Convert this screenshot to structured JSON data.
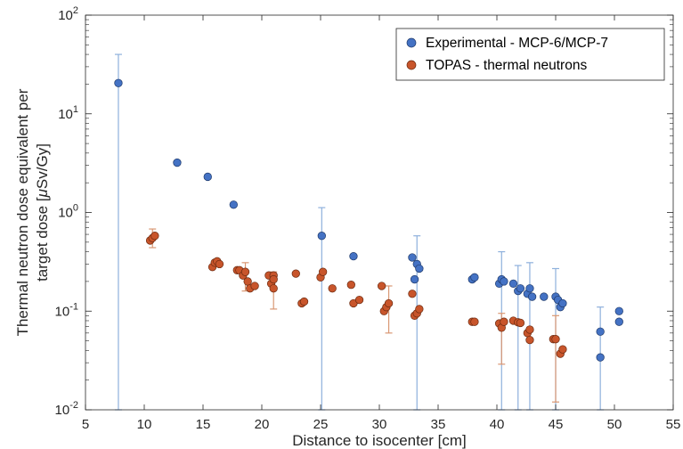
{
  "chart_data": {
    "type": "scatter",
    "title": "",
    "xlabel": "Distance to isocenter [cm]",
    "ylabel_line1": "Thermal neutron dose equivalent per",
    "ylabel_line2_prefix": "target dose [",
    "ylabel_line2_mu": "μ",
    "ylabel_line2_suffix": "Sv/Gy]",
    "xlim": [
      5,
      55
    ],
    "ylim": [
      0.01,
      100
    ],
    "yscale": "log",
    "grid": false,
    "legend_position": "top-right",
    "x_ticks": [
      "5",
      "10",
      "15",
      "20",
      "25",
      "30",
      "35",
      "40",
      "45",
      "50",
      "55"
    ],
    "x_tick_values": [
      5,
      10,
      15,
      20,
      25,
      30,
      35,
      40,
      45,
      50,
      55
    ],
    "y_tick_values": [
      0.01,
      0.1,
      1,
      10,
      100
    ],
    "y_ticks": [
      {
        "base": "10",
        "exp": "-2"
      },
      {
        "base": "10",
        "exp": "-1"
      },
      {
        "base": "10",
        "exp": "0"
      },
      {
        "base": "10",
        "exp": "1"
      },
      {
        "base": "10",
        "exp": "2"
      }
    ],
    "series": [
      {
        "name": "Experimental - MCP-6/MCP-7",
        "color": "#4472C4",
        "edge_color": "#1F3A6B",
        "error_color": "#8EB0DC",
        "points": [
          {
            "x": 7.8,
            "y": 20.5,
            "err": [
              0.01,
              40
            ]
          },
          {
            "x": 12.8,
            "y": 3.2
          },
          {
            "x": 15.4,
            "y": 2.3
          },
          {
            "x": 17.6,
            "y": 1.2
          },
          {
            "x": 25.1,
            "y": 0.58,
            "err": [
              0.01,
              1.12
            ]
          },
          {
            "x": 27.8,
            "y": 0.36
          },
          {
            "x": 32.8,
            "y": 0.35
          },
          {
            "x": 33.0,
            "y": 0.21
          },
          {
            "x": 33.2,
            "y": 0.3,
            "err": [
              0.01,
              0.58
            ]
          },
          {
            "x": 33.4,
            "y": 0.27
          },
          {
            "x": 37.9,
            "y": 0.21
          },
          {
            "x": 38.1,
            "y": 0.22
          },
          {
            "x": 40.2,
            "y": 0.19
          },
          {
            "x": 40.4,
            "y": 0.21,
            "err": [
              0.01,
              0.4
            ]
          },
          {
            "x": 40.6,
            "y": 0.2
          },
          {
            "x": 41.4,
            "y": 0.19
          },
          {
            "x": 41.8,
            "y": 0.16,
            "err": [
              0.01,
              0.29
            ]
          },
          {
            "x": 42.0,
            "y": 0.17
          },
          {
            "x": 42.6,
            "y": 0.15
          },
          {
            "x": 42.8,
            "y": 0.17,
            "err": [
              0.01,
              0.31
            ]
          },
          {
            "x": 43.0,
            "y": 0.14
          },
          {
            "x": 44.0,
            "y": 0.14
          },
          {
            "x": 45.0,
            "y": 0.14,
            "err": [
              0.01,
              0.27
            ]
          },
          {
            "x": 45.2,
            "y": 0.13
          },
          {
            "x": 45.4,
            "y": 0.11
          },
          {
            "x": 45.6,
            "y": 0.12
          },
          {
            "x": 48.8,
            "y": 0.062,
            "err": [
              0.01,
              0.11
            ]
          },
          {
            "x": 48.8,
            "y": 0.034
          },
          {
            "x": 50.4,
            "y": 0.1
          },
          {
            "x": 50.4,
            "y": 0.078
          }
        ]
      },
      {
        "name": "TOPAS - thermal neutrons",
        "color": "#C8552B",
        "edge_color": "#6B2A10",
        "error_color": "#D99773",
        "points": [
          {
            "x": 10.5,
            "y": 0.52
          },
          {
            "x": 10.7,
            "y": 0.55,
            "err": [
              0.44,
              0.68
            ]
          },
          {
            "x": 10.9,
            "y": 0.58
          },
          {
            "x": 15.8,
            "y": 0.28
          },
          {
            "x": 16.0,
            "y": 0.31
          },
          {
            "x": 16.2,
            "y": 0.32
          },
          {
            "x": 16.4,
            "y": 0.3
          },
          {
            "x": 17.9,
            "y": 0.26
          },
          {
            "x": 18.1,
            "y": 0.26
          },
          {
            "x": 18.4,
            "y": 0.23
          },
          {
            "x": 18.6,
            "y": 0.25,
            "err": [
              0.16,
              0.31
            ]
          },
          {
            "x": 18.8,
            "y": 0.2
          },
          {
            "x": 19.0,
            "y": 0.17
          },
          {
            "x": 19.4,
            "y": 0.18
          },
          {
            "x": 20.6,
            "y": 0.23
          },
          {
            "x": 20.8,
            "y": 0.19
          },
          {
            "x": 21.0,
            "y": 0.17,
            "err": [
              0.105,
              0.25
            ]
          },
          {
            "x": 21.0,
            "y": 0.23
          },
          {
            "x": 21.0,
            "y": 0.21
          },
          {
            "x": 22.9,
            "y": 0.24
          },
          {
            "x": 23.4,
            "y": 0.12
          },
          {
            "x": 23.6,
            "y": 0.125
          },
          {
            "x": 25.0,
            "y": 0.22
          },
          {
            "x": 25.2,
            "y": 0.25
          },
          {
            "x": 26.0,
            "y": 0.17
          },
          {
            "x": 27.6,
            "y": 0.185
          },
          {
            "x": 27.8,
            "y": 0.12
          },
          {
            "x": 28.3,
            "y": 0.13
          },
          {
            "x": 30.2,
            "y": 0.18
          },
          {
            "x": 30.4,
            "y": 0.1
          },
          {
            "x": 30.6,
            "y": 0.11
          },
          {
            "x": 30.8,
            "y": 0.12,
            "err": [
              0.06,
              0.18
            ]
          },
          {
            "x": 32.8,
            "y": 0.15
          },
          {
            "x": 33.0,
            "y": 0.09
          },
          {
            "x": 33.2,
            "y": 0.095
          },
          {
            "x": 33.4,
            "y": 0.105
          },
          {
            "x": 37.9,
            "y": 0.078
          },
          {
            "x": 38.1,
            "y": 0.078
          },
          {
            "x": 40.2,
            "y": 0.075
          },
          {
            "x": 40.4,
            "y": 0.068,
            "err": [
              0.029,
              0.095
            ]
          },
          {
            "x": 40.6,
            "y": 0.078
          },
          {
            "x": 41.4,
            "y": 0.08
          },
          {
            "x": 41.8,
            "y": 0.077
          },
          {
            "x": 42.0,
            "y": 0.076
          },
          {
            "x": 42.6,
            "y": 0.06
          },
          {
            "x": 42.8,
            "y": 0.065
          },
          {
            "x": 42.8,
            "y": 0.051
          },
          {
            "x": 44.8,
            "y": 0.052
          },
          {
            "x": 45.0,
            "y": 0.052,
            "err": [
              0.012,
              0.09
            ]
          },
          {
            "x": 45.4,
            "y": 0.037
          },
          {
            "x": 45.6,
            "y": 0.041
          }
        ]
      }
    ]
  }
}
